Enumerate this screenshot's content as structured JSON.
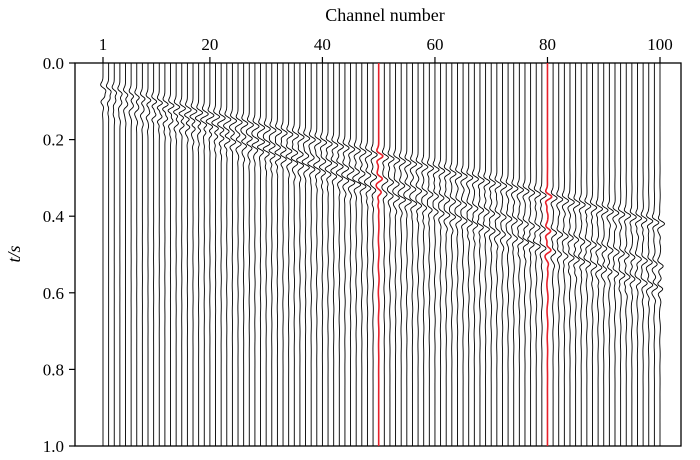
{
  "chart_data": {
    "type": "seismic-wiggle",
    "xlabel": "Channel number",
    "ylabel": "t/s",
    "xlim": [
      1,
      100
    ],
    "ylim": [
      0.0,
      1.0
    ],
    "y_inverted": true,
    "x_ticks": [
      {
        "value": 1,
        "label": "1"
      },
      {
        "value": 20,
        "label": "20"
      },
      {
        "value": 40,
        "label": "40"
      },
      {
        "value": 60,
        "label": "60"
      },
      {
        "value": 80,
        "label": "80"
      },
      {
        "value": 100,
        "label": "100"
      }
    ],
    "y_ticks": [
      {
        "value": 0.0,
        "label": "0.0"
      },
      {
        "value": 0.2,
        "label": "0.2"
      },
      {
        "value": 0.4,
        "label": "0.4"
      },
      {
        "value": 0.6,
        "label": "0.6"
      },
      {
        "value": 0.8,
        "label": "0.8"
      },
      {
        "value": 1.0,
        "label": "1.0"
      }
    ],
    "channel_count": 100,
    "trace_color": "#000000",
    "highlight_color": "#e8202a",
    "highlighted_channels": [
      50,
      80
    ],
    "events": [
      {
        "time_at_channel_1": 0.07,
        "time_at_channel_100": 0.42
      },
      {
        "time_at_channel_1": 0.08,
        "time_at_channel_100": 0.53
      },
      {
        "time_at_channel_1": 0.09,
        "time_at_channel_100": 0.59
      }
    ],
    "grid": false
  }
}
